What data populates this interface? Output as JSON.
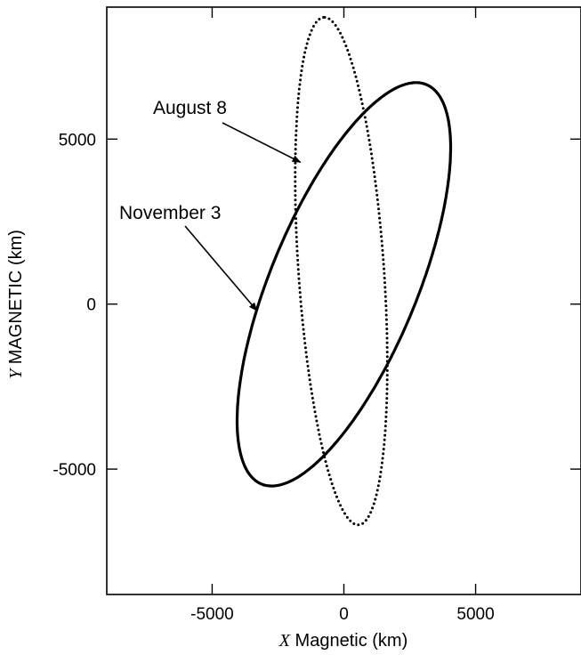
{
  "chart_data": {
    "type": "line",
    "title": "",
    "xlabel": {
      "var": "X",
      "rest": " Magnetic (km)"
    },
    "ylabel": {
      "var": "Y",
      "rest": " MAGNETIC (km)"
    },
    "xlim": [
      -9000,
      9000
    ],
    "ylim": [
      -8800,
      9000
    ],
    "xticks": [
      {
        "value": -5000,
        "label": "-5000"
      },
      {
        "value": 0,
        "label": "0"
      },
      {
        "value": 5000,
        "label": "5000"
      }
    ],
    "yticks": [
      {
        "value": -5000,
        "label": "-5000"
      },
      {
        "value": 0,
        "label": "0"
      },
      {
        "value": 5000,
        "label": "5000"
      }
    ],
    "grid": false,
    "legend": "none",
    "series": [
      {
        "name": "November 3",
        "style": "solid",
        "color": "#000000",
        "shape": "ellipse",
        "center": [
          0,
          600
        ],
        "semi_axes": [
          6830,
          2670
        ],
        "tilt_deg": 61,
        "label_at": [
          -3300,
          -200
        ]
      },
      {
        "name": "August 8",
        "style": "dotted",
        "color": "#000000",
        "shape": "ellipse",
        "center": [
          -100,
          1000
        ],
        "semi_axes": [
          7720,
          1620
        ],
        "tilt_deg": 95,
        "label_at": [
          -1650,
          4300
        ]
      }
    ],
    "annotations": [
      {
        "text": "August 8",
        "series": 1
      },
      {
        "text": "November 3",
        "series": 0
      }
    ]
  }
}
